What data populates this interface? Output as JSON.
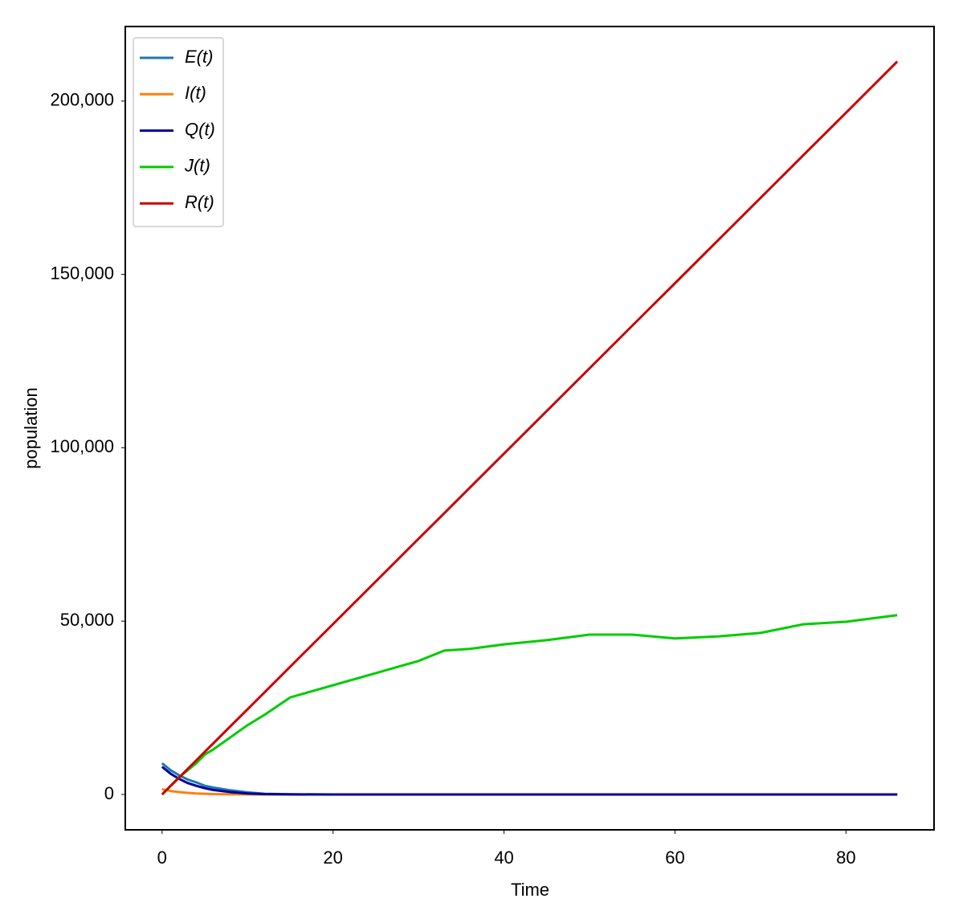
{
  "chart_data": {
    "type": "line",
    "xlabel": "Time",
    "ylabel": "population",
    "x": [
      0,
      1,
      2,
      3,
      4,
      5,
      6,
      8,
      10,
      12,
      15,
      20,
      25,
      30,
      33,
      36,
      40,
      45,
      50,
      55,
      60,
      65,
      70,
      75,
      80,
      86
    ],
    "series": [
      {
        "name": "E(t)",
        "color": "#1f77b4",
        "values": [
          9000,
          7000,
          5500,
          4300,
          3500,
          2500,
          2000,
          1200,
          600,
          200,
          50,
          0,
          0,
          0,
          0,
          0,
          0,
          0,
          0,
          0,
          0,
          0,
          0,
          0,
          0,
          0
        ]
      },
      {
        "name": "I(t)",
        "color": "#ff7f0e",
        "values": [
          1500,
          1000,
          700,
          450,
          300,
          200,
          120,
          50,
          20,
          0,
          0,
          0,
          0,
          0,
          0,
          0,
          0,
          0,
          0,
          0,
          0,
          0,
          0,
          0,
          0,
          0
        ]
      },
      {
        "name": "Q(t)",
        "color": "#00009c",
        "values": [
          8000,
          6000,
          4500,
          3300,
          2500,
          1800,
          1300,
          700,
          300,
          100,
          20,
          0,
          0,
          0,
          0,
          0,
          0,
          0,
          0,
          0,
          0,
          0,
          0,
          0,
          0,
          0
        ]
      },
      {
        "name": "J(t)",
        "color": "#00cc00",
        "values": [
          0,
          2500,
          5000,
          7000,
          9000,
          11500,
          13000,
          16500,
          20000,
          23000,
          28000,
          31500,
          35000,
          38500,
          41500,
          42000,
          43300,
          44500,
          46100,
          46100,
          45000,
          45600,
          46600,
          49100,
          49800,
          51700
        ]
      },
      {
        "name": "R(t)",
        "color": "#cc0000",
        "values": [
          0,
          2458,
          4916,
          7374,
          9832,
          12290,
          14748,
          19664,
          24580,
          29496,
          36870,
          49160,
          61450,
          73740,
          81114,
          88488,
          98320,
          110610,
          122900,
          135190,
          147480,
          159770,
          172060,
          184350,
          196640,
          211390
        ]
      }
    ],
    "xlim": [
      -4.3,
      90.3
    ],
    "xticks": [
      0,
      20,
      40,
      60,
      80
    ],
    "ylim": [
      -10200,
      221500
    ],
    "yticks": [
      0,
      {
        "value": 50000,
        "label": "50,000"
      },
      {
        "value": 100000,
        "label": "100,000"
      },
      {
        "value": 150000,
        "label": "150,000"
      },
      {
        "value": 200000,
        "label": "200,000"
      }
    ],
    "grid": false,
    "legend": "upper left"
  }
}
